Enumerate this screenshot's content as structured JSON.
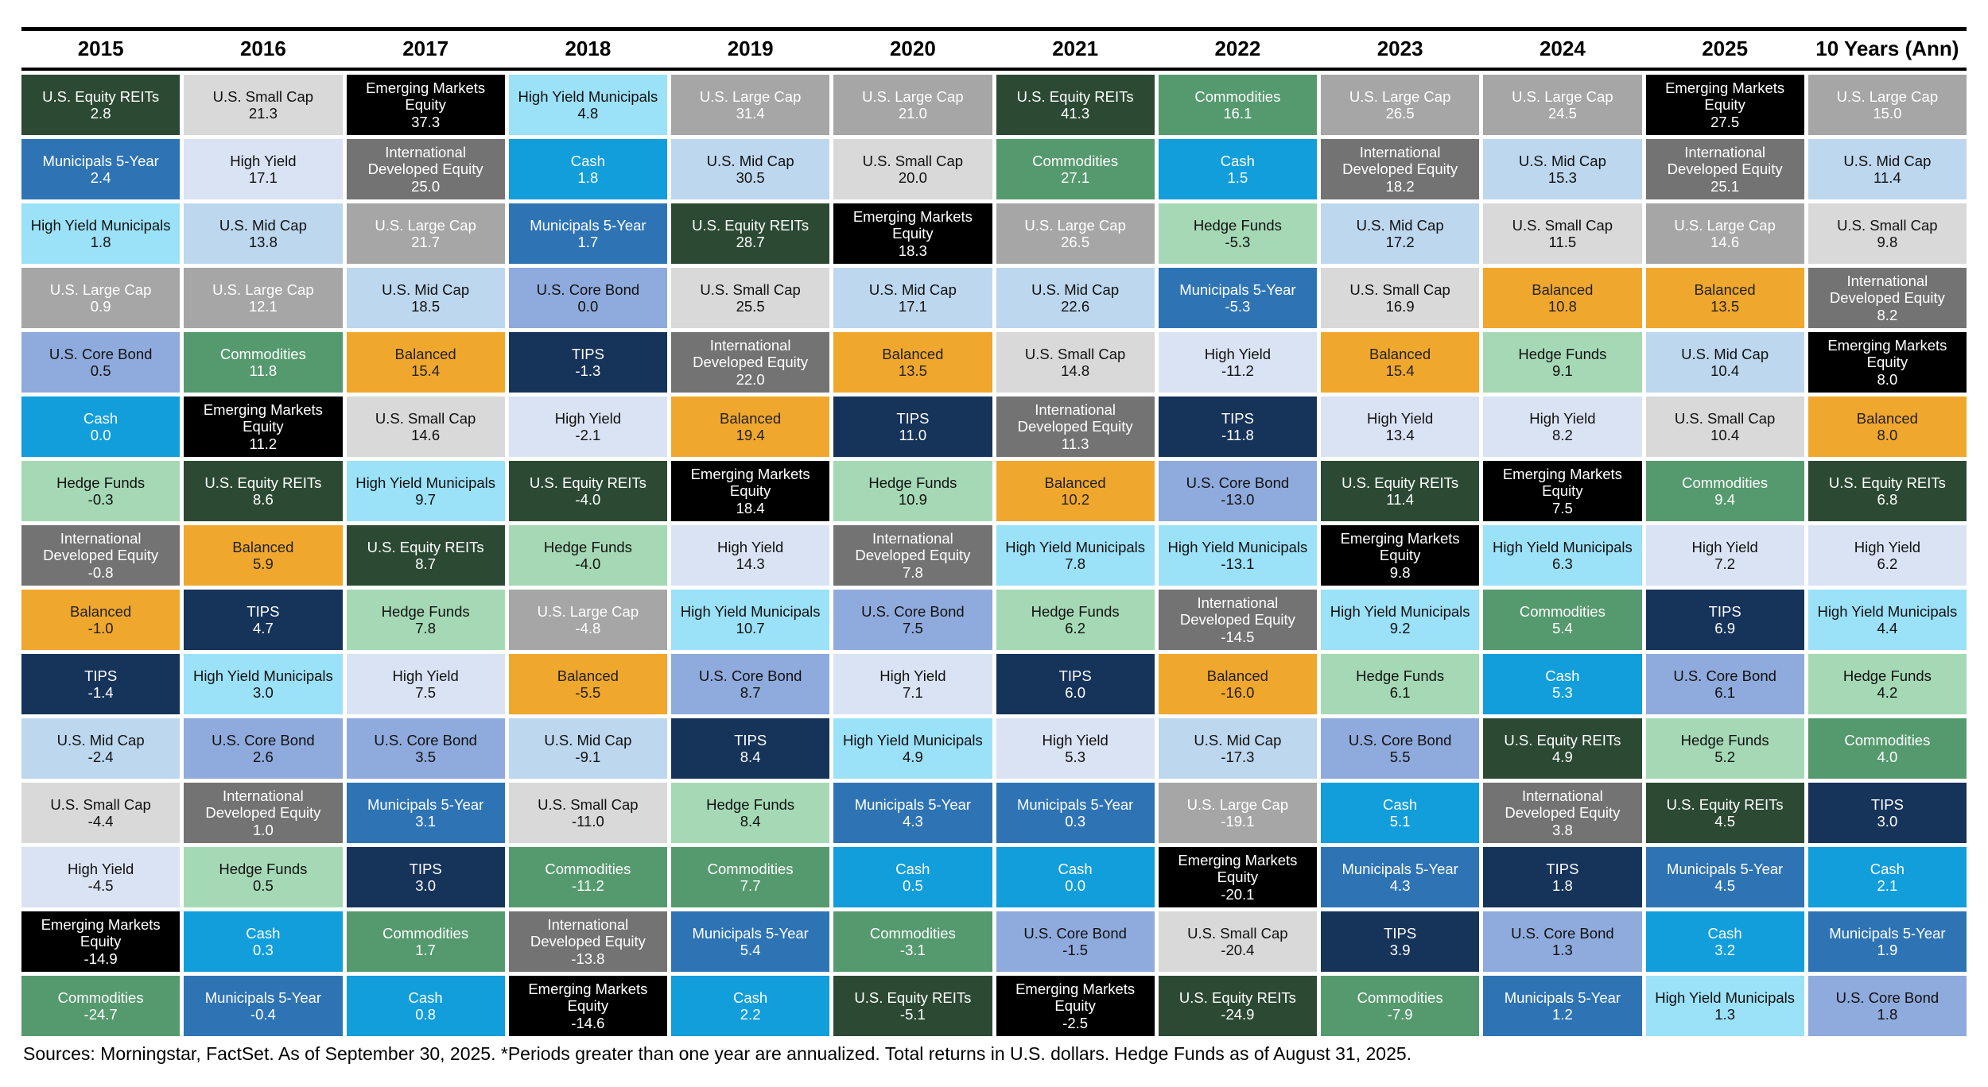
{
  "footer": "Sources: Morningstar, FactSet. As of September 30, 2025. *Periods greater than one year are annualized. Total returns in U.S. dollars. Hedge Funds as of August 31, 2025.",
  "asset_colors": {
    "U.S. Large Cap": {
      "bg": "#a6a6a6",
      "fg": "#ffffff"
    },
    "U.S. Mid Cap": {
      "bg": "#bdd7ee",
      "fg": "#111111"
    },
    "U.S. Small Cap": {
      "bg": "#d9d9d9",
      "fg": "#111111"
    },
    "U.S. Equity REITs": {
      "bg": "#2c4a33",
      "fg": "#ffffff"
    },
    "International Developed Equity": {
      "bg": "#737373",
      "fg": "#ffffff"
    },
    "Emerging Markets Equity": {
      "bg": "#000000",
      "fg": "#ffffff"
    },
    "U.S. Core Bond": {
      "bg": "#8faadc",
      "fg": "#111111"
    },
    "High Yield": {
      "bg": "#dae3f3",
      "fg": "#111111"
    },
    "Municipals 5-Year": {
      "bg": "#2e74b5",
      "fg": "#ffffff"
    },
    "High Yield Municipals": {
      "bg": "#9be1f7",
      "fg": "#111111"
    },
    "TIPS": {
      "bg": "#16335a",
      "fg": "#ffffff"
    },
    "Commodities": {
      "bg": "#559a6e",
      "fg": "#ffffff"
    },
    "Hedge Funds": {
      "bg": "#a5d9b5",
      "fg": "#111111"
    },
    "Balanced": {
      "bg": "#f0a72e",
      "fg": "#222222"
    },
    "Cash": {
      "bg": "#119edb",
      "fg": "#ffffff"
    }
  },
  "chart_data": {
    "type": "table",
    "title": "Asset class total returns ranked best to worst by year",
    "legend_position": "none",
    "columns": [
      {
        "label": "2015",
        "ranked": [
          {
            "asset": "U.S. Equity REITs",
            "value": "2.8"
          },
          {
            "asset": "Municipals 5-Year",
            "value": "2.4"
          },
          {
            "asset": "High Yield Municipals",
            "value": "1.8"
          },
          {
            "asset": "U.S. Large Cap",
            "value": "0.9"
          },
          {
            "asset": "U.S. Core Bond",
            "value": "0.5"
          },
          {
            "asset": "Cash",
            "value": "0.0"
          },
          {
            "asset": "Hedge Funds",
            "value": "-0.3"
          },
          {
            "asset": "International Developed Equity",
            "value": "-0.8"
          },
          {
            "asset": "Balanced",
            "value": "-1.0"
          },
          {
            "asset": "TIPS",
            "value": "-1.4"
          },
          {
            "asset": "U.S. Mid Cap",
            "value": "-2.4"
          },
          {
            "asset": "U.S. Small Cap",
            "value": "-4.4"
          },
          {
            "asset": "High Yield",
            "value": "-4.5"
          },
          {
            "asset": "Emerging Markets Equity",
            "value": "-14.9"
          },
          {
            "asset": "Commodities",
            "value": "-24.7"
          }
        ]
      },
      {
        "label": "2016",
        "ranked": [
          {
            "asset": "U.S. Small Cap",
            "value": "21.3"
          },
          {
            "asset": "High Yield",
            "value": "17.1"
          },
          {
            "asset": "U.S. Mid Cap",
            "value": "13.8"
          },
          {
            "asset": "U.S. Large Cap",
            "value": "12.1"
          },
          {
            "asset": "Commodities",
            "value": "11.8"
          },
          {
            "asset": "Emerging Markets Equity",
            "value": "11.2"
          },
          {
            "asset": "U.S. Equity REITs",
            "value": "8.6"
          },
          {
            "asset": "Balanced",
            "value": "5.9"
          },
          {
            "asset": "TIPS",
            "value": "4.7"
          },
          {
            "asset": "High Yield Municipals",
            "value": "3.0"
          },
          {
            "asset": "U.S. Core Bond",
            "value": "2.6"
          },
          {
            "asset": "International Developed Equity",
            "value": "1.0"
          },
          {
            "asset": "Hedge Funds",
            "value": "0.5"
          },
          {
            "asset": "Cash",
            "value": "0.3"
          },
          {
            "asset": "Municipals 5-Year",
            "value": "-0.4"
          }
        ]
      },
      {
        "label": "2017",
        "ranked": [
          {
            "asset": "Emerging Markets Equity",
            "value": "37.3"
          },
          {
            "asset": "International Developed Equity",
            "value": "25.0"
          },
          {
            "asset": "U.S. Large Cap",
            "value": "21.7"
          },
          {
            "asset": "U.S. Mid Cap",
            "value": "18.5"
          },
          {
            "asset": "Balanced",
            "value": "15.4"
          },
          {
            "asset": "U.S. Small Cap",
            "value": "14.6"
          },
          {
            "asset": "High Yield Municipals",
            "value": "9.7"
          },
          {
            "asset": "U.S. Equity REITs",
            "value": "8.7"
          },
          {
            "asset": "Hedge Funds",
            "value": "7.8"
          },
          {
            "asset": "High Yield",
            "value": "7.5"
          },
          {
            "asset": "U.S. Core Bond",
            "value": "3.5"
          },
          {
            "asset": "Municipals 5-Year",
            "value": "3.1"
          },
          {
            "asset": "TIPS",
            "value": "3.0"
          },
          {
            "asset": "Commodities",
            "value": "1.7"
          },
          {
            "asset": "Cash",
            "value": "0.8"
          }
        ]
      },
      {
        "label": "2018",
        "ranked": [
          {
            "asset": "High Yield Municipals",
            "value": "4.8"
          },
          {
            "asset": "Cash",
            "value": "1.8"
          },
          {
            "asset": "Municipals 5-Year",
            "value": "1.7"
          },
          {
            "asset": "U.S. Core Bond",
            "value": "0.0"
          },
          {
            "asset": "TIPS",
            "value": "-1.3"
          },
          {
            "asset": "High Yield",
            "value": "-2.1"
          },
          {
            "asset": "U.S. Equity REITs",
            "value": "-4.0"
          },
          {
            "asset": "Hedge Funds",
            "value": "-4.0"
          },
          {
            "asset": "U.S. Large Cap",
            "value": "-4.8"
          },
          {
            "asset": "Balanced",
            "value": "-5.5"
          },
          {
            "asset": "U.S. Mid Cap",
            "value": "-9.1"
          },
          {
            "asset": "U.S. Small Cap",
            "value": "-11.0"
          },
          {
            "asset": "Commodities",
            "value": "-11.2"
          },
          {
            "asset": "International Developed Equity",
            "value": "-13.8"
          },
          {
            "asset": "Emerging Markets Equity",
            "value": "-14.6"
          }
        ]
      },
      {
        "label": "2019",
        "ranked": [
          {
            "asset": "U.S. Large Cap",
            "value": "31.4"
          },
          {
            "asset": "U.S. Mid Cap",
            "value": "30.5"
          },
          {
            "asset": "U.S. Equity REITs",
            "value": "28.7"
          },
          {
            "asset": "U.S. Small Cap",
            "value": "25.5"
          },
          {
            "asset": "International Developed Equity",
            "value": "22.0"
          },
          {
            "asset": "Balanced",
            "value": "19.4"
          },
          {
            "asset": "Emerging Markets Equity",
            "value": "18.4"
          },
          {
            "asset": "High Yield",
            "value": "14.3"
          },
          {
            "asset": "High Yield Municipals",
            "value": "10.7"
          },
          {
            "asset": "U.S. Core Bond",
            "value": "8.7"
          },
          {
            "asset": "TIPS",
            "value": "8.4"
          },
          {
            "asset": "Hedge Funds",
            "value": "8.4"
          },
          {
            "asset": "Commodities",
            "value": "7.7"
          },
          {
            "asset": "Municipals 5-Year",
            "value": "5.4"
          },
          {
            "asset": "Cash",
            "value": "2.2"
          }
        ]
      },
      {
        "label": "2020",
        "ranked": [
          {
            "asset": "U.S. Large Cap",
            "value": "21.0"
          },
          {
            "asset": "U.S. Small Cap",
            "value": "20.0"
          },
          {
            "asset": "Emerging Markets Equity",
            "value": "18.3"
          },
          {
            "asset": "U.S. Mid Cap",
            "value": "17.1"
          },
          {
            "asset": "Balanced",
            "value": "13.5"
          },
          {
            "asset": "TIPS",
            "value": "11.0"
          },
          {
            "asset": "Hedge Funds",
            "value": "10.9"
          },
          {
            "asset": "International Developed Equity",
            "value": "7.8"
          },
          {
            "asset": "U.S. Core Bond",
            "value": "7.5"
          },
          {
            "asset": "High Yield",
            "value": "7.1"
          },
          {
            "asset": "High Yield Municipals",
            "value": "4.9"
          },
          {
            "asset": "Municipals 5-Year",
            "value": "4.3"
          },
          {
            "asset": "Cash",
            "value": "0.5"
          },
          {
            "asset": "Commodities",
            "value": "-3.1"
          },
          {
            "asset": "U.S. Equity REITs",
            "value": "-5.1"
          }
        ]
      },
      {
        "label": "2021",
        "ranked": [
          {
            "asset": "U.S. Equity REITs",
            "value": "41.3"
          },
          {
            "asset": "Commodities",
            "value": "27.1"
          },
          {
            "asset": "U.S. Large Cap",
            "value": "26.5"
          },
          {
            "asset": "U.S. Mid Cap",
            "value": "22.6"
          },
          {
            "asset": "U.S. Small Cap",
            "value": "14.8"
          },
          {
            "asset": "International Developed Equity",
            "value": "11.3"
          },
          {
            "asset": "Balanced",
            "value": "10.2"
          },
          {
            "asset": "High Yield Municipals",
            "value": "7.8"
          },
          {
            "asset": "Hedge Funds",
            "value": "6.2"
          },
          {
            "asset": "TIPS",
            "value": "6.0"
          },
          {
            "asset": "High Yield",
            "value": "5.3"
          },
          {
            "asset": "Municipals 5-Year",
            "value": "0.3"
          },
          {
            "asset": "Cash",
            "value": "0.0"
          },
          {
            "asset": "U.S. Core Bond",
            "value": "-1.5"
          },
          {
            "asset": "Emerging Markets Equity",
            "value": "-2.5"
          }
        ]
      },
      {
        "label": "2022",
        "ranked": [
          {
            "asset": "Commodities",
            "value": "16.1"
          },
          {
            "asset": "Cash",
            "value": "1.5"
          },
          {
            "asset": "Hedge Funds",
            "value": "-5.3"
          },
          {
            "asset": "Municipals 5-Year",
            "value": "-5.3"
          },
          {
            "asset": "High Yield",
            "value": "-11.2"
          },
          {
            "asset": "TIPS",
            "value": "-11.8"
          },
          {
            "asset": "U.S. Core Bond",
            "value": "-13.0"
          },
          {
            "asset": "High Yield Municipals",
            "value": "-13.1"
          },
          {
            "asset": "International Developed Equity",
            "value": "-14.5"
          },
          {
            "asset": "Balanced",
            "value": "-16.0"
          },
          {
            "asset": "U.S. Mid Cap",
            "value": "-17.3"
          },
          {
            "asset": "U.S. Large Cap",
            "value": "-19.1"
          },
          {
            "asset": "Emerging Markets Equity",
            "value": "-20.1"
          },
          {
            "asset": "U.S. Small Cap",
            "value": "-20.4"
          },
          {
            "asset": "U.S. Equity REITs",
            "value": "-24.9"
          }
        ]
      },
      {
        "label": "2023",
        "ranked": [
          {
            "asset": "U.S. Large Cap",
            "value": "26.5"
          },
          {
            "asset": "International Developed Equity",
            "value": "18.2"
          },
          {
            "asset": "U.S. Mid Cap",
            "value": "17.2"
          },
          {
            "asset": "U.S. Small Cap",
            "value": "16.9"
          },
          {
            "asset": "Balanced",
            "value": "15.4"
          },
          {
            "asset": "High Yield",
            "value": "13.4"
          },
          {
            "asset": "U.S. Equity REITs",
            "value": "11.4"
          },
          {
            "asset": "Emerging Markets Equity",
            "value": "9.8"
          },
          {
            "asset": "High Yield Municipals",
            "value": "9.2"
          },
          {
            "asset": "Hedge Funds",
            "value": "6.1"
          },
          {
            "asset": "U.S. Core Bond",
            "value": "5.5"
          },
          {
            "asset": "Cash",
            "value": "5.1"
          },
          {
            "asset": "Municipals 5-Year",
            "value": "4.3"
          },
          {
            "asset": "TIPS",
            "value": "3.9"
          },
          {
            "asset": "Commodities",
            "value": "-7.9"
          }
        ]
      },
      {
        "label": "2024",
        "ranked": [
          {
            "asset": "U.S. Large Cap",
            "value": "24.5"
          },
          {
            "asset": "U.S. Mid Cap",
            "value": "15.3"
          },
          {
            "asset": "U.S. Small Cap",
            "value": "11.5"
          },
          {
            "asset": "Balanced",
            "value": "10.8"
          },
          {
            "asset": "Hedge Funds",
            "value": "9.1"
          },
          {
            "asset": "High Yield",
            "value": "8.2"
          },
          {
            "asset": "Emerging Markets Equity",
            "value": "7.5"
          },
          {
            "asset": "High Yield Municipals",
            "value": "6.3"
          },
          {
            "asset": "Commodities",
            "value": "5.4"
          },
          {
            "asset": "Cash",
            "value": "5.3"
          },
          {
            "asset": "U.S. Equity REITs",
            "value": "4.9"
          },
          {
            "asset": "International Developed Equity",
            "value": "3.8"
          },
          {
            "asset": "TIPS",
            "value": "1.8"
          },
          {
            "asset": "U.S. Core Bond",
            "value": "1.3"
          },
          {
            "asset": "Municipals 5-Year",
            "value": "1.2"
          }
        ]
      },
      {
        "label": "2025",
        "ranked": [
          {
            "asset": "Emerging Markets Equity",
            "value": "27.5"
          },
          {
            "asset": "International Developed Equity",
            "value": "25.1"
          },
          {
            "asset": "U.S. Large Cap",
            "value": "14.6"
          },
          {
            "asset": "Balanced",
            "value": "13.5"
          },
          {
            "asset": "U.S. Mid Cap",
            "value": "10.4"
          },
          {
            "asset": "U.S. Small Cap",
            "value": "10.4"
          },
          {
            "asset": "Commodities",
            "value": "9.4"
          },
          {
            "asset": "High Yield",
            "value": "7.2"
          },
          {
            "asset": "TIPS",
            "value": "6.9"
          },
          {
            "asset": "U.S. Core Bond",
            "value": "6.1"
          },
          {
            "asset": "Hedge Funds",
            "value": "5.2"
          },
          {
            "asset": "U.S. Equity REITs",
            "value": "4.5"
          },
          {
            "asset": "Municipals 5-Year",
            "value": "4.5"
          },
          {
            "asset": "Cash",
            "value": "3.2"
          },
          {
            "asset": "High Yield Municipals",
            "value": "1.3"
          }
        ]
      },
      {
        "label": "10 Years (Ann)",
        "ranked": [
          {
            "asset": "U.S. Large Cap",
            "value": "15.0"
          },
          {
            "asset": "U.S. Mid Cap",
            "value": "11.4"
          },
          {
            "asset": "U.S. Small Cap",
            "value": "9.8"
          },
          {
            "asset": "International Developed Equity",
            "value": "8.2"
          },
          {
            "asset": "Emerging Markets Equity",
            "value": "8.0"
          },
          {
            "asset": "Balanced",
            "value": "8.0"
          },
          {
            "asset": "U.S. Equity REITs",
            "value": "6.8"
          },
          {
            "asset": "High Yield",
            "value": "6.2"
          },
          {
            "asset": "High Yield Municipals",
            "value": "4.4"
          },
          {
            "asset": "Hedge Funds",
            "value": "4.2"
          },
          {
            "asset": "Commodities",
            "value": "4.0"
          },
          {
            "asset": "TIPS",
            "value": "3.0"
          },
          {
            "asset": "Cash",
            "value": "2.1"
          },
          {
            "asset": "Municipals 5-Year",
            "value": "1.9"
          },
          {
            "asset": "U.S. Core Bond",
            "value": "1.8"
          }
        ]
      }
    ]
  }
}
